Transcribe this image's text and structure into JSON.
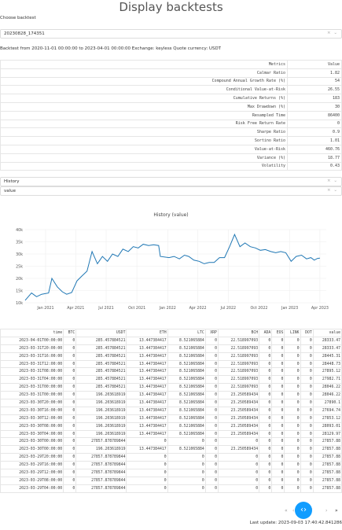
{
  "title": "Display backtests",
  "choose_label": "Choose backtest",
  "backtest_select": {
    "value": "20230828_174351",
    "ctrl": "× ⌄"
  },
  "info_text": "Backtest from 2020-11-01 00:00:00 to 2023-04-01 00:00:00 Exchange: keyless Quote currency: USDT",
  "metrics": {
    "headers": [
      "Metrics",
      "Value"
    ],
    "rows": [
      [
        "Calmar Ratio",
        "1.82"
      ],
      [
        "Compound Annual Growth Rate (%)",
        "54"
      ],
      [
        "Conditional Value-at-Risk",
        "26.55"
      ],
      [
        "Cumulative Returns (%)",
        "183"
      ],
      [
        "Max Drawdown (%)",
        "30"
      ],
      [
        "Resampled Time",
        "86400"
      ],
      [
        "Risk Free Return Rate",
        "0"
      ],
      [
        "Sharpe Ratio",
        "0.9"
      ],
      [
        "Sortino Ratio",
        "1.01"
      ],
      [
        "Value-at-Risk",
        "460.76"
      ],
      [
        "Variance (%)",
        "18.77"
      ],
      [
        "Volatility",
        "0.43"
      ]
    ]
  },
  "history_select": {
    "value": "History",
    "ctrl": "× ⌄"
  },
  "value_select": {
    "value": "value",
    "ctrl": "× ⌄"
  },
  "chart_data": {
    "type": "line",
    "title": "History (value)",
    "x_ticks": [
      "Jan 2021",
      "Apr 2021",
      "Jul 2021",
      "Oct 2021",
      "Jan 2022",
      "Apr 2022",
      "Jul 2022",
      "Oct 2022",
      "Jan 2023",
      "Apr 2023"
    ],
    "y_ticks": [
      "10k",
      "15k",
      "20k",
      "25k",
      "30k",
      "35k",
      "40k"
    ],
    "ylim": [
      10000,
      40000
    ],
    "series": [
      {
        "color": "#1f77b4",
        "points": [
          [
            "2020-11-01",
            11000
          ],
          [
            "2020-11-20",
            14000
          ],
          [
            "2020-12-05",
            12500
          ],
          [
            "2020-12-20",
            13500
          ],
          [
            "2021-01-10",
            14000
          ],
          [
            "2021-01-20",
            20000
          ],
          [
            "2021-02-05",
            16500
          ],
          [
            "2021-02-20",
            14500
          ],
          [
            "2021-03-05",
            13500
          ],
          [
            "2021-03-20",
            14200
          ],
          [
            "2021-04-05",
            19000
          ],
          [
            "2021-04-20",
            21000
          ],
          [
            "2021-05-05",
            23000
          ],
          [
            "2021-05-20",
            31000
          ],
          [
            "2021-06-05",
            26000
          ],
          [
            "2021-06-20",
            29000
          ],
          [
            "2021-07-05",
            27000
          ],
          [
            "2021-07-20",
            30000
          ],
          [
            "2021-08-05",
            29000
          ],
          [
            "2021-08-20",
            32000
          ],
          [
            "2021-09-05",
            31000
          ],
          [
            "2021-09-20",
            33000
          ],
          [
            "2021-10-05",
            32500
          ],
          [
            "2021-10-20",
            34000
          ],
          [
            "2021-11-05",
            33500
          ],
          [
            "2021-11-20",
            33800
          ],
          [
            "2021-12-05",
            33500
          ],
          [
            "2021-12-10",
            29000
          ],
          [
            "2022-01-05",
            28500
          ],
          [
            "2022-01-20",
            29000
          ],
          [
            "2022-02-05",
            28000
          ],
          [
            "2022-02-20",
            29500
          ],
          [
            "2022-03-05",
            29000
          ],
          [
            "2022-03-20",
            27500
          ],
          [
            "2022-04-05",
            27000
          ],
          [
            "2022-04-20",
            26000
          ],
          [
            "2022-05-05",
            26500
          ],
          [
            "2022-05-20",
            26500
          ],
          [
            "2022-06-05",
            28500
          ],
          [
            "2022-06-20",
            28500
          ],
          [
            "2022-07-05",
            33000
          ],
          [
            "2022-07-20",
            38000
          ],
          [
            "2022-08-05",
            33000
          ],
          [
            "2022-08-20",
            34500
          ],
          [
            "2022-09-05",
            33000
          ],
          [
            "2022-09-20",
            32500
          ],
          [
            "2022-10-05",
            31500
          ],
          [
            "2022-10-20",
            31800
          ],
          [
            "2022-11-05",
            31000
          ],
          [
            "2022-11-20",
            30500
          ],
          [
            "2022-12-05",
            31000
          ],
          [
            "2022-12-20",
            30500
          ],
          [
            "2023-01-05",
            27000
          ],
          [
            "2023-01-20",
            29000
          ],
          [
            "2023-02-05",
            29500
          ],
          [
            "2023-02-20",
            28000
          ],
          [
            "2023-03-05",
            28500
          ],
          [
            "2023-03-15",
            27500
          ],
          [
            "2023-03-25",
            28200
          ],
          [
            "2023-04-01",
            28300
          ]
        ]
      }
    ]
  },
  "history_table": {
    "headers": [
      "time",
      "BTC",
      "USDT",
      "ETH",
      "LTC",
      "XRP",
      "BCH",
      "ADA",
      "EOS",
      "LINK",
      "DOT",
      "value"
    ],
    "rows": [
      [
        "2023-04-01T00:00:00",
        "0",
        "285.457884521",
        "13.447384417",
        "8.521065884",
        "0",
        "22.518997093",
        "0",
        "0",
        "0",
        "0",
        "28333.47"
      ],
      [
        "2023-03-31T20:00:00",
        "0",
        "285.457884521",
        "13.447384417",
        "8.521065884",
        "0",
        "22.518997093",
        "0",
        "0",
        "0",
        "0",
        "28333.47"
      ],
      [
        "2023-03-31T16:00:00",
        "0",
        "285.457884521",
        "13.447384417",
        "8.521065884",
        "0",
        "22.518997093",
        "0",
        "0",
        "0",
        "0",
        "28445.31"
      ],
      [
        "2023-03-31T12:00:00",
        "0",
        "285.457884521",
        "13.447384417",
        "8.521065884",
        "0",
        "22.518997093",
        "0",
        "0",
        "0",
        "0",
        "28448.73"
      ],
      [
        "2023-03-31T08:00:00",
        "0",
        "285.457884521",
        "13.447384417",
        "8.521065884",
        "0",
        "22.518997093",
        "0",
        "0",
        "0",
        "0",
        "27895.12"
      ],
      [
        "2023-03-31T04:00:00",
        "0",
        "285.457884521",
        "13.447384417",
        "8.521065884",
        "0",
        "22.518997093",
        "0",
        "0",
        "0",
        "0",
        "27982.71"
      ],
      [
        "2023-03-31T00:00:00",
        "0",
        "285.457884521",
        "13.447384417",
        "8.521065884",
        "0",
        "22.518997093",
        "0",
        "0",
        "0",
        "0",
        "28046.22"
      ],
      [
        "2023-03-31T00:00:00",
        "0",
        "196.203618919",
        "13.447384417",
        "8.521065884",
        "0",
        "23.250589434",
        "0",
        "0",
        "0",
        "0",
        "28046.22"
      ],
      [
        "2023-03-30T20:00:00",
        "0",
        "196.203618919",
        "13.447384417",
        "8.521065884",
        "0",
        "23.250589434",
        "0",
        "0",
        "0",
        "0",
        "27890.1"
      ],
      [
        "2023-03-30T16:00:00",
        "0",
        "196.203618919",
        "13.447384417",
        "8.521065884",
        "0",
        "23.250589434",
        "0",
        "0",
        "0",
        "0",
        "27694.74"
      ],
      [
        "2023-03-30T12:00:00",
        "0",
        "196.203618919",
        "13.447384417",
        "8.521065884",
        "0",
        "23.250589434",
        "0",
        "0",
        "0",
        "0",
        "27853.12"
      ],
      [
        "2023-03-30T08:00:00",
        "0",
        "196.203618919",
        "13.447384417",
        "8.521065884",
        "0",
        "23.250589434",
        "0",
        "0",
        "0",
        "0",
        "28093.01"
      ],
      [
        "2023-03-30T04:00:00",
        "0",
        "196.203618919",
        "13.447384417",
        "8.521065884",
        "0",
        "23.250589434",
        "0",
        "0",
        "0",
        "0",
        "28129.97"
      ],
      [
        "2023-03-30T00:00:00",
        "0",
        "27857.878789844",
        "0",
        "0",
        "0",
        "0",
        "0",
        "0",
        "0",
        "0",
        "27857.88"
      ],
      [
        "2023-03-30T00:00:00",
        "0",
        "196.203618919",
        "13.447384417",
        "8.521065884",
        "0",
        "23.250589434",
        "0",
        "0",
        "0",
        "0",
        "27857.88"
      ],
      [
        "2023-03-29T20:00:00",
        "0",
        "27857.878789844",
        "0",
        "0",
        "0",
        "0",
        "0",
        "0",
        "0",
        "0",
        "27857.88"
      ],
      [
        "2023-03-29T16:00:00",
        "0",
        "27857.878789844",
        "0",
        "0",
        "0",
        "0",
        "0",
        "0",
        "0",
        "0",
        "27857.88"
      ],
      [
        "2023-03-29T12:00:00",
        "0",
        "27857.878789844",
        "0",
        "0",
        "0",
        "0",
        "0",
        "0",
        "0",
        "0",
        "27857.88"
      ],
      [
        "2023-03-29T08:00:00",
        "0",
        "27857.878789844",
        "0",
        "0",
        "0",
        "0",
        "0",
        "0",
        "0",
        "0",
        "27857.88"
      ],
      [
        "2023-03-29T04:00:00",
        "0",
        "27857.878789844",
        "0",
        "0",
        "0",
        "0",
        "0",
        "0",
        "0",
        "0",
        "27857.88"
      ]
    ]
  },
  "pager": {
    "first": "«",
    "prev": "‹",
    "page": "1",
    "sep": "/",
    "next": "›",
    "last": "»"
  },
  "fab_icon": "‹›",
  "footer": "Last update: 2023-09-03 17:40:42.841286"
}
